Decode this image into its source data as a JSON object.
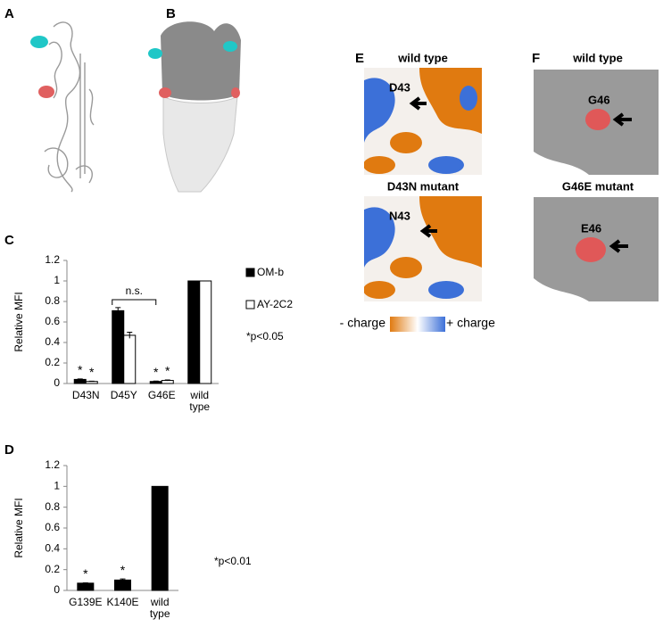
{
  "panels": {
    "a": "A",
    "b": "B"
  },
  "chart_data": [
    {
      "type": "bar",
      "label": "C",
      "y_label": "Relative MFI",
      "categories": [
        "D43N",
        "D45Y",
        "G46E",
        "wild type"
      ],
      "series": [
        {
          "name": "OM-b",
          "color": "#000000",
          "values": [
            0.04,
            0.71,
            0.02,
            1.0
          ],
          "errors": [
            0.005,
            0.03,
            0.004,
            0
          ],
          "significance": [
            "*",
            null,
            "*",
            null
          ]
        },
        {
          "name": "AY-2C2",
          "color": "#ffffff",
          "values": [
            0.02,
            0.47,
            0.03,
            1.0
          ],
          "errors": [
            0.003,
            0.03,
            0.005,
            0
          ],
          "significance": [
            "*",
            null,
            "*",
            null
          ]
        }
      ],
      "bracket_label": "n.s.",
      "note": "*p<0.05",
      "ylim": [
        0,
        1.2
      ],
      "yticks": [
        0,
        0.2,
        0.4,
        0.6,
        0.8,
        1,
        1.2
      ]
    },
    {
      "type": "bar",
      "label": "D",
      "y_label": "Relative MFI",
      "categories": [
        "G139E",
        "K140E",
        "wild type"
      ],
      "values": [
        0.07,
        0.1,
        1.0
      ],
      "errors": [
        0.003,
        0.01,
        0
      ],
      "color": "#000000",
      "significance": [
        "*",
        "*",
        null
      ],
      "note": "*p<0.01",
      "ylim": [
        0,
        1.2
      ],
      "yticks": [
        0,
        0.2,
        0.4,
        0.6,
        0.8,
        1,
        1.2
      ]
    }
  ],
  "panel_e": {
    "label": "E",
    "top_title": "wild type",
    "top_residue": "D43",
    "bottom_title": "D43N mutant",
    "bottom_residue": "N43"
  },
  "panel_f": {
    "label": "F",
    "top_title": "wild type",
    "top_residue": "G46",
    "bottom_title": "G46E mutant",
    "bottom_residue": "E46"
  },
  "charge_legend": {
    "negative": "- charge",
    "positive": "+ charge"
  }
}
